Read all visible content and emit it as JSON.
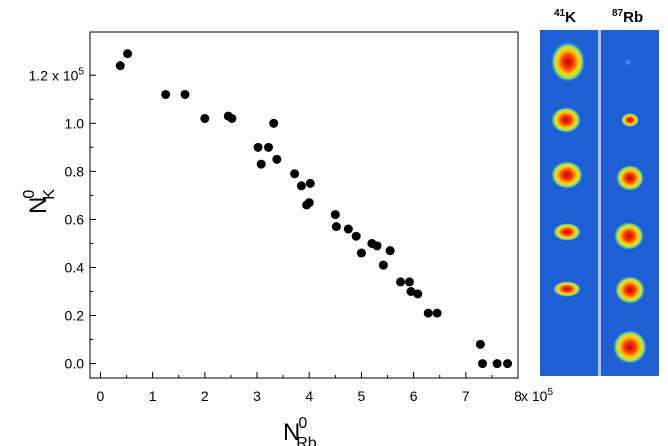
{
  "chart_data": {
    "type": "scatter",
    "xlabel": {
      "main": "N",
      "sup": "0",
      "sub": "Rb"
    },
    "ylabel": {
      "main": "N",
      "sup": "0",
      "sub": "K"
    },
    "xlim": [
      -0.2,
      8.0
    ],
    "ylim": [
      -0.06,
      1.38
    ],
    "xticks": [
      {
        "value": 0,
        "label": "0"
      },
      {
        "value": 1,
        "label": "1"
      },
      {
        "value": 2,
        "label": "2"
      },
      {
        "value": 3,
        "label": "3"
      },
      {
        "value": 4,
        "label": "4"
      },
      {
        "value": 5,
        "label": "5"
      },
      {
        "value": 6,
        "label": "6"
      },
      {
        "value": 7,
        "label": "7"
      },
      {
        "value": 8,
        "label": "8"
      }
    ],
    "x_multiplier": {
      "base": "x 10",
      "exp": "5"
    },
    "yticks": [
      {
        "value": 0.0,
        "label": "0.0"
      },
      {
        "value": 0.2,
        "label": "0.2"
      },
      {
        "value": 0.4,
        "label": "0.4"
      },
      {
        "value": 0.6,
        "label": "0.6"
      },
      {
        "value": 0.8,
        "label": "0.8"
      },
      {
        "value": 1.0,
        "label": "1.0"
      },
      {
        "value": 1.2,
        "label": "1.2 x 10",
        "sup": "5"
      }
    ],
    "grid": false,
    "marker_color": "#000000",
    "points": [
      [
        0.38,
        1.24
      ],
      [
        0.52,
        1.29
      ],
      [
        1.25,
        1.12
      ],
      [
        1.62,
        1.12
      ],
      [
        2.0,
        1.02
      ],
      [
        2.45,
        1.03
      ],
      [
        2.52,
        1.02
      ],
      [
        3.02,
        0.9
      ],
      [
        3.08,
        0.83
      ],
      [
        3.22,
        0.9
      ],
      [
        3.32,
        1.0
      ],
      [
        3.38,
        0.85
      ],
      [
        3.72,
        0.79
      ],
      [
        3.85,
        0.74
      ],
      [
        3.95,
        0.66
      ],
      [
        4.0,
        0.67
      ],
      [
        4.02,
        0.75
      ],
      [
        4.5,
        0.62
      ],
      [
        4.52,
        0.57
      ],
      [
        4.75,
        0.56
      ],
      [
        4.9,
        0.53
      ],
      [
        5.0,
        0.46
      ],
      [
        5.2,
        0.5
      ],
      [
        5.3,
        0.49
      ],
      [
        5.42,
        0.41
      ],
      [
        5.55,
        0.47
      ],
      [
        5.75,
        0.34
      ],
      [
        5.92,
        0.34
      ],
      [
        5.95,
        0.3
      ],
      [
        6.08,
        0.29
      ],
      [
        6.28,
        0.21
      ],
      [
        6.45,
        0.21
      ],
      [
        7.28,
        0.08
      ],
      [
        7.32,
        0.0
      ],
      [
        7.6,
        0.0
      ],
      [
        7.8,
        0.0
      ]
    ]
  },
  "absorption_images": {
    "k_label": {
      "sup": "41",
      "main": "K"
    },
    "rb_label": {
      "sup": "87",
      "main": "Rb"
    },
    "background_color": "#1f5fd6",
    "rows": 6
  }
}
